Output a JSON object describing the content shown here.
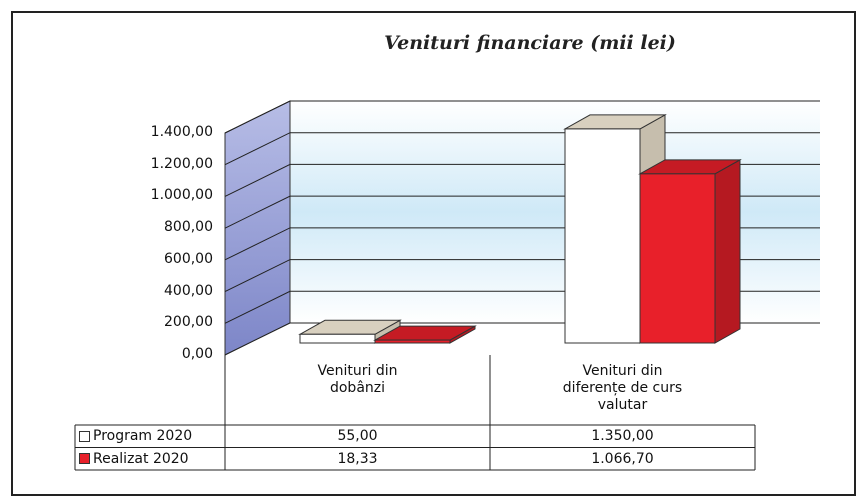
{
  "chart_data": {
    "type": "bar3d",
    "title": "Venituri financiare (mii lei)",
    "categories": [
      "Venituri din dobânzi",
      "Venituri din diferențe de curs valutar"
    ],
    "series": [
      {
        "name": "Program 2020",
        "color": "#ffffff",
        "values": [
          55,
          1350
        ],
        "value_labels": [
          "55,00",
          "1.350,00"
        ]
      },
      {
        "name": "Realizat 2020",
        "color": "#e8202a",
        "values": [
          18.33,
          1066.7
        ],
        "value_labels": [
          "18,33",
          "1.066,70"
        ]
      }
    ],
    "ylim": [
      0,
      1400
    ],
    "yticks": [
      {
        "value": 0,
        "label": "0,00"
      },
      {
        "value": 200,
        "label": "200,00"
      },
      {
        "value": 400,
        "label": "400,00"
      },
      {
        "value": 600,
        "label": "600,00"
      },
      {
        "value": 800,
        "label": "800,00"
      },
      {
        "value": 1000,
        "label": "1.000,00"
      },
      {
        "value": 1200,
        "label": "1.200,00"
      },
      {
        "value": 1400,
        "label": "1.400,00"
      }
    ],
    "grid": true,
    "data_table": true
  }
}
